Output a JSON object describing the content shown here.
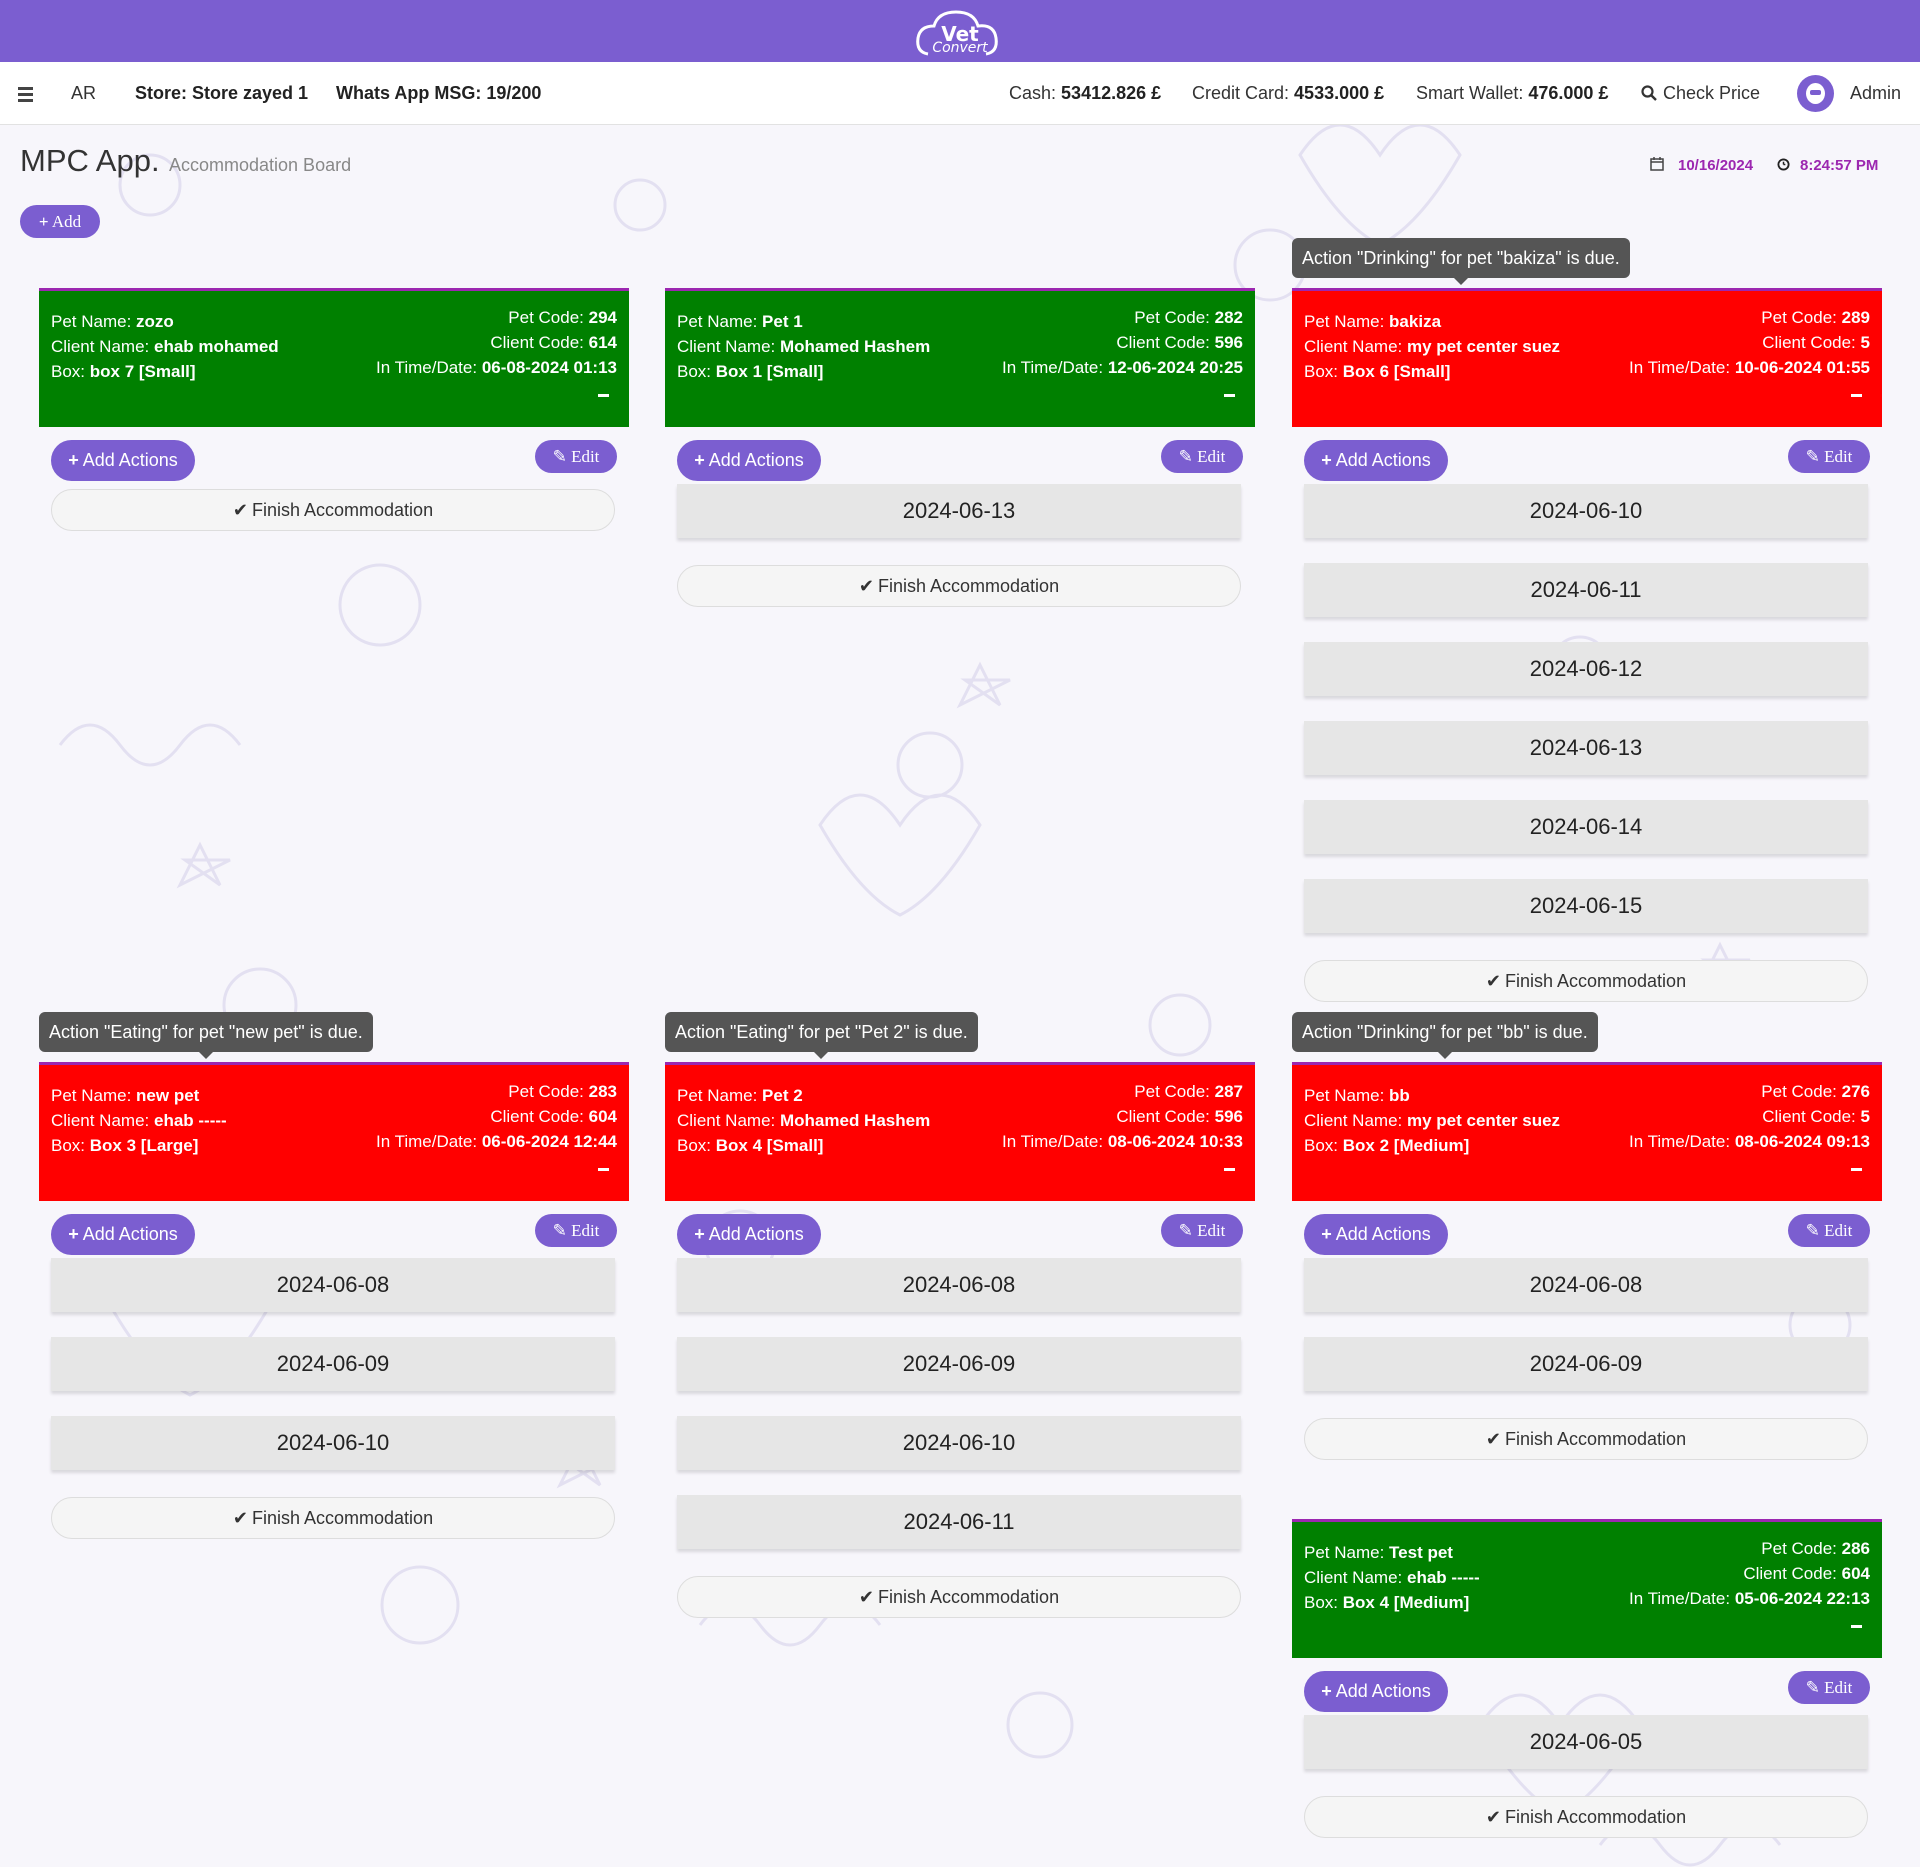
{
  "topbar": {
    "logo_top": "Vet",
    "logo_bottom": "Convert"
  },
  "nav": {
    "lang": "AR",
    "store_label": "Store: Store zayed 1",
    "whatsapp_label": "Whats App MSG: 19/200",
    "cash_label": "Cash:",
    "cash_value": "53412.826 £",
    "credit_label": "Credit Card:",
    "credit_value": "4533.000 £",
    "wallet_label": "Smart Wallet:",
    "wallet_value": "476.000 £",
    "check_price": "Check Price",
    "user": "Admin"
  },
  "page": {
    "title": "MPC App.",
    "subtitle": "Accommodation Board",
    "date": "10/16/2024",
    "time": "8:24:57 PM",
    "add_label": "Add"
  },
  "labels": {
    "pet_name": "Pet Name:",
    "client_name": "Client Name:",
    "box": "Box:",
    "pet_code": "Pet Code:",
    "client_code": "Client Code:",
    "in_time": "In Time/Date:",
    "add_actions": "Add Actions",
    "edit": "Edit",
    "finish": "Finish Accommodation"
  },
  "cards": [
    {
      "status": "green",
      "tooltip": "",
      "pet_name": "zozo",
      "client_name": "ehab mohamed",
      "box": "box 7 [Small]",
      "pet_code": "294",
      "client_code": "614",
      "in_time": "06-08-2024 01:13",
      "dates": []
    },
    {
      "status": "green",
      "tooltip": "",
      "pet_name": "Pet 1",
      "client_name": "Mohamed Hashem",
      "box": "Box 1 [Small]",
      "pet_code": "282",
      "client_code": "596",
      "in_time": "12-06-2024 20:25",
      "dates": [
        "2024-06-13"
      ]
    },
    {
      "status": "red",
      "tooltip": "Action \"Drinking\" for pet \"bakiza\" is due.",
      "pet_name": "bakiza",
      "client_name": "my pet center suez",
      "box": "Box 6 [Small]",
      "pet_code": "289",
      "client_code": "5",
      "in_time": "10-06-2024 01:55",
      "dates": [
        "2024-06-10",
        "2024-06-11",
        "2024-06-12",
        "2024-06-13",
        "2024-06-14",
        "2024-06-15"
      ]
    },
    {
      "status": "red",
      "tooltip": "Action \"Eating\" for pet \"new pet\" is due.",
      "pet_name": "new pet",
      "client_name": "ehab -----",
      "box": "Box 3 [Large]",
      "pet_code": "283",
      "client_code": "604",
      "in_time": "06-06-2024 12:44",
      "dates": [
        "2024-06-08",
        "2024-06-09",
        "2024-06-10"
      ]
    },
    {
      "status": "red",
      "tooltip": "Action \"Eating\" for pet \"Pet 2\" is due.",
      "pet_name": "Pet 2",
      "client_name": "Mohamed Hashem",
      "box": "Box 4 [Small]",
      "pet_code": "287",
      "client_code": "596",
      "in_time": "08-06-2024 10:33",
      "dates": [
        "2024-06-08",
        "2024-06-09",
        "2024-06-10",
        "2024-06-11"
      ]
    },
    {
      "status": "red",
      "tooltip": "Action \"Drinking\" for pet \"bb\" is due.",
      "pet_name": "bb",
      "client_name": "my pet center suez",
      "box": "Box 2 [Medium]",
      "pet_code": "276",
      "client_code": "5",
      "in_time": "08-06-2024 09:13",
      "dates": [
        "2024-06-08",
        "2024-06-09"
      ]
    },
    {
      "status": "green",
      "tooltip": "",
      "pet_name": "Test pet",
      "client_name": "ehab -----",
      "box": "Box 4 [Medium]",
      "pet_code": "286",
      "client_code": "604",
      "in_time": "05-06-2024 22:13",
      "dates": [
        "2024-06-05"
      ]
    }
  ]
}
